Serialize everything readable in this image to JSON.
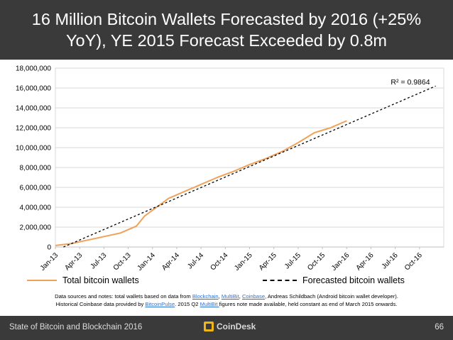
{
  "title": "16 Million Bitcoin Wallets Forecasted by 2016 (+25% YoY), YE 2015 Forecast Exceeded by 0.8m",
  "chart_data": {
    "type": "line",
    "title": "",
    "xlabel": "",
    "ylabel": "",
    "ylim": [
      0,
      18000000
    ],
    "y_ticks": [
      0,
      2000000,
      4000000,
      6000000,
      8000000,
      10000000,
      12000000,
      14000000,
      16000000,
      18000000
    ],
    "y_tick_labels": [
      "0",
      "2,000,000",
      "4,000,000",
      "6,000,000",
      "8,000,000",
      "10,000,000",
      "12,000,000",
      "14,000,000",
      "16,000,000",
      "18,000,000"
    ],
    "x_tick_labels": [
      "Jan-13",
      "Apr-13",
      "Jul-13",
      "Oct-13",
      "Jan-14",
      "Apr-14",
      "Jul-14",
      "Oct-14",
      "Jan-15",
      "Apr-15",
      "Jul-15",
      "Oct-15",
      "Jan-16",
      "Apr-16",
      "Jul-16",
      "Oct-16"
    ],
    "xlim": [
      0,
      48
    ],
    "grid": true,
    "legend_position": "bottom",
    "series": [
      {
        "name": "Total bitcoin wallets",
        "color": "#f0a25b",
        "style": "solid",
        "x": [
          0,
          2,
          4,
          6,
          8,
          10,
          11,
          12,
          14,
          16,
          18,
          20,
          22,
          24,
          26,
          28,
          30,
          31,
          32,
          34,
          36
        ],
        "y": [
          150000,
          350000,
          700000,
          1050000,
          1400000,
          2100000,
          3100000,
          3700000,
          4900000,
          5600000,
          6300000,
          7000000,
          7600000,
          8300000,
          8900000,
          9600000,
          10500000,
          11000000,
          11500000,
          12000000,
          12700000
        ]
      },
      {
        "name": "Forecasted bitcoin wallets",
        "color": "#000000",
        "style": "dashed",
        "x": [
          1,
          47
        ],
        "y": [
          0,
          16200000
        ]
      }
    ],
    "annotation": "R² = 0.9864"
  },
  "legend": {
    "total_label": "Total bitcoin wallets",
    "forecast_label": "Forecasted bitcoin wallets"
  },
  "notes": {
    "line1_prefix": "Data sources and notes: total wallets based on data from ",
    "link_blockchain": "Blockchain",
    "sep1": ", ",
    "link_multibit": "MultiBit",
    "sep2": ", ",
    "link_coinbase": "Coinbase",
    "line1_suffix": ", Andreas Schildbach (Android bitcoin wallet developer).",
    "line2_prefix": "Historical Coinbase data provided by ",
    "link_bitcoinpulse": "BitcoinPulse",
    "line2_mid": ". 2015 Q2 ",
    "link_multibit2": "MultiBit ",
    "line2_suffix": "figures note made available, held constant as end of March 2015 onwards."
  },
  "footer": {
    "left": "State of Bitcoin and Blockchain 2016",
    "brand": "CoinDesk",
    "page": "66"
  }
}
